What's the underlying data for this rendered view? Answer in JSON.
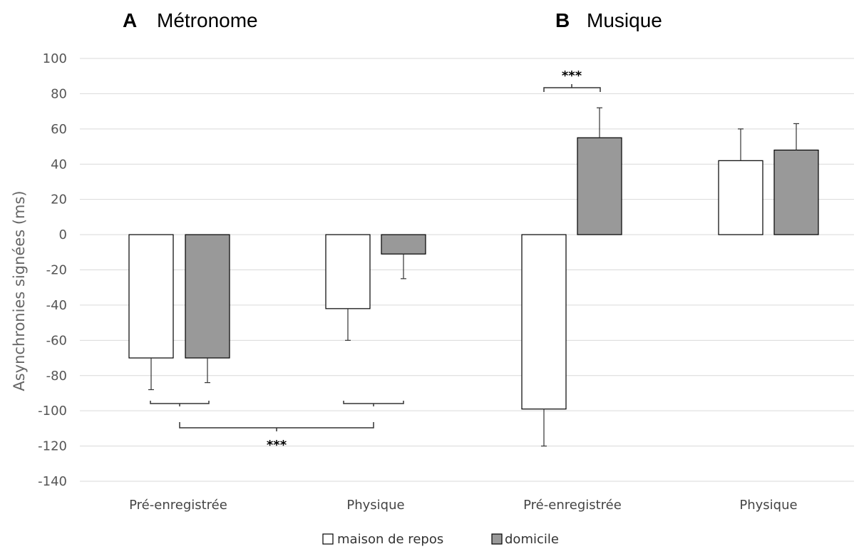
{
  "chart_data": {
    "type": "bar",
    "ylabel": "Asynchronies signées (ms)",
    "ylim": [
      -140,
      100
    ],
    "yticks": [
      100,
      80,
      60,
      40,
      20,
      0,
      -20,
      -40,
      -60,
      -80,
      -100,
      -120,
      -140
    ],
    "grid": true,
    "legend_position": "bottom-center",
    "colors": {
      "maison": "#ffffff",
      "domicile": "#999999"
    },
    "series": [
      {
        "name": "maison de repos",
        "values": [
          -70,
          -42,
          -99,
          42
        ],
        "errors": [
          18,
          18,
          21,
          18
        ]
      },
      {
        "name": "domicile",
        "values": [
          -70,
          -11,
          55,
          48
        ],
        "errors": [
          14,
          14,
          17,
          15
        ]
      }
    ],
    "panels": [
      {
        "letter": "A",
        "title": "Métronome",
        "categories": [
          "Pré-enregistrée",
          "Physique"
        ]
      },
      {
        "letter": "B",
        "title": "Musique",
        "categories": [
          "Pré-enregistrée",
          "Physique"
        ]
      }
    ],
    "annotations": [
      {
        "text": "***",
        "between": "A Pré-enregistrée vs A Physique"
      },
      {
        "text": "***",
        "between": "B Pré-enregistrée maison de repos vs domicile"
      }
    ]
  }
}
